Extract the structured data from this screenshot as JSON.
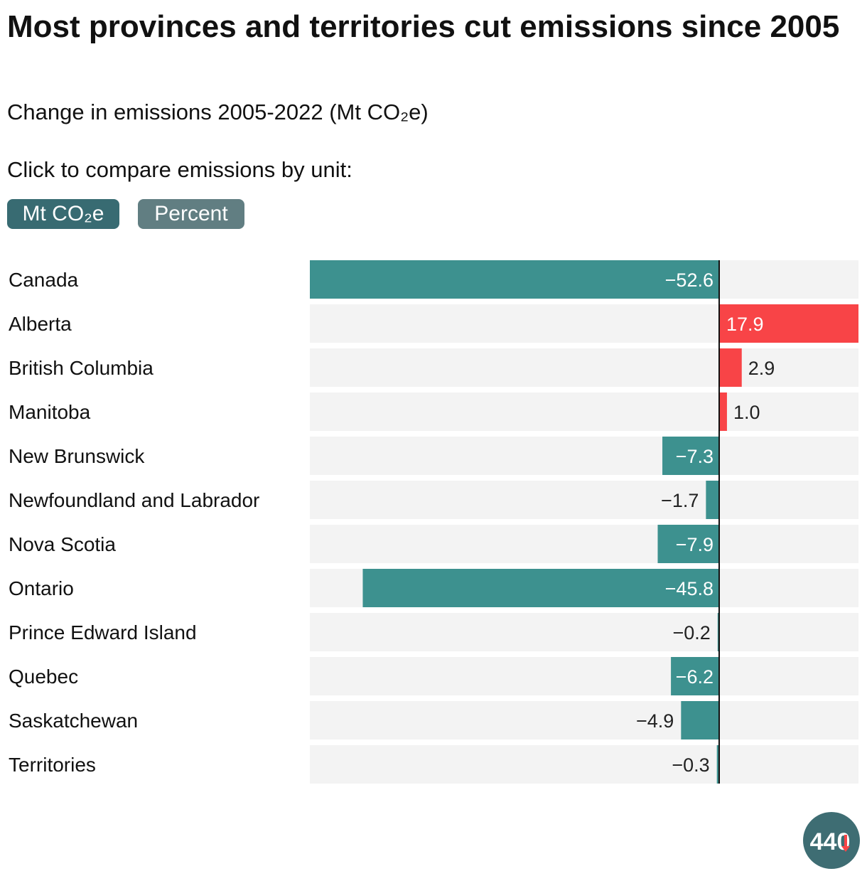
{
  "title": "Most provinces and territories cut emissions since 2005",
  "subtitle": "Change in emissions 2005-2022 (Mt CO₂e)",
  "prompt": "Click to compare emissions by unit:",
  "buttons": {
    "mt": "Mt CO₂e",
    "percent": "Percent"
  },
  "logo_text": "440",
  "colors": {
    "negative": "#3d918f",
    "positive": "#f84447",
    "row_bg": "#f3f3f3",
    "button_active": "#386b72",
    "button_inactive": "#617e82"
  },
  "chart_data": {
    "type": "bar",
    "orientation": "horizontal",
    "unit": "Mt CO₂e",
    "xlim": [
      -52.6,
      17.9
    ],
    "categories": [
      "Canada",
      "Alberta",
      "British Columbia",
      "Manitoba",
      "New Brunswick",
      "Newfoundland and Labrador",
      "Nova Scotia",
      "Ontario",
      "Prince Edward Island",
      "Quebec",
      "Saskatchewan",
      "Territories"
    ],
    "values": [
      -52.6,
      17.9,
      2.9,
      1.0,
      -7.3,
      -1.7,
      -7.9,
      -45.8,
      -0.2,
      -6.2,
      -4.9,
      -0.3
    ],
    "labels": [
      "−52.6",
      "17.9",
      "2.9",
      "1.0",
      "−7.3",
      "−1.7",
      "−7.9",
      "−45.8",
      "−0.2",
      "−6.2",
      "−4.9",
      "−0.3"
    ]
  }
}
